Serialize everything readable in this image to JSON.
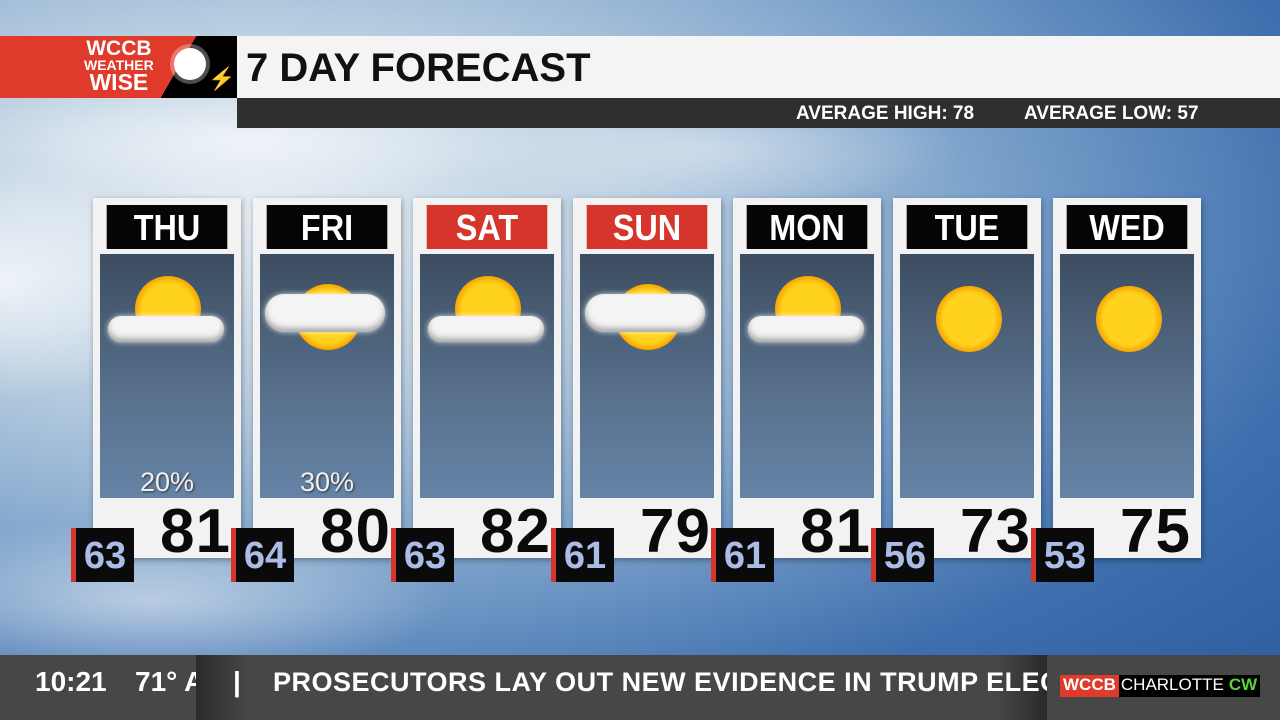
{
  "logo": {
    "line1": "WCCB",
    "line2": "WEATHER",
    "line3": "WISE"
  },
  "header": {
    "title": "7 DAY FORECAST",
    "average_high": "AVERAGE HIGH: 78",
    "average_low": "AVERAGE LOW: 57"
  },
  "days": [
    {
      "day": "THU",
      "high": "81",
      "low": "63",
      "precip": "20%",
      "icon": "partly-sunny-icon",
      "weekend": false
    },
    {
      "day": "FRI",
      "high": "80",
      "low": "64",
      "precip": "30%",
      "icon": "mostly-cloudy-icon",
      "weekend": false
    },
    {
      "day": "SAT",
      "high": "82",
      "low": "63",
      "precip": "",
      "icon": "partly-sunny-icon",
      "weekend": true
    },
    {
      "day": "SUN",
      "high": "79",
      "low": "61",
      "precip": "",
      "icon": "mostly-cloudy-icon",
      "weekend": true
    },
    {
      "day": "MON",
      "high": "81",
      "low": "61",
      "precip": "",
      "icon": "partly-sunny-icon",
      "weekend": false
    },
    {
      "day": "TUE",
      "high": "73",
      "low": "56",
      "precip": "",
      "icon": "sunny-icon",
      "weekend": false
    },
    {
      "day": "WED",
      "high": "75",
      "low": "53",
      "precip": "",
      "icon": "sunny-icon",
      "weekend": false
    }
  ],
  "colors": {
    "weekend_header": "#d5352a",
    "weekday_header": "#050505",
    "low_accent": "#d5352a"
  },
  "ticker": {
    "time": "10:21",
    "temp": "71° A",
    "separator": "|",
    "headline": "PROSECUTORS LAY OUT NEW EVIDENCE IN TRUMP ELECTI",
    "brand_wccb": "WCCB",
    "brand_city": "CHARLOTTE",
    "brand_cw": "CW"
  }
}
